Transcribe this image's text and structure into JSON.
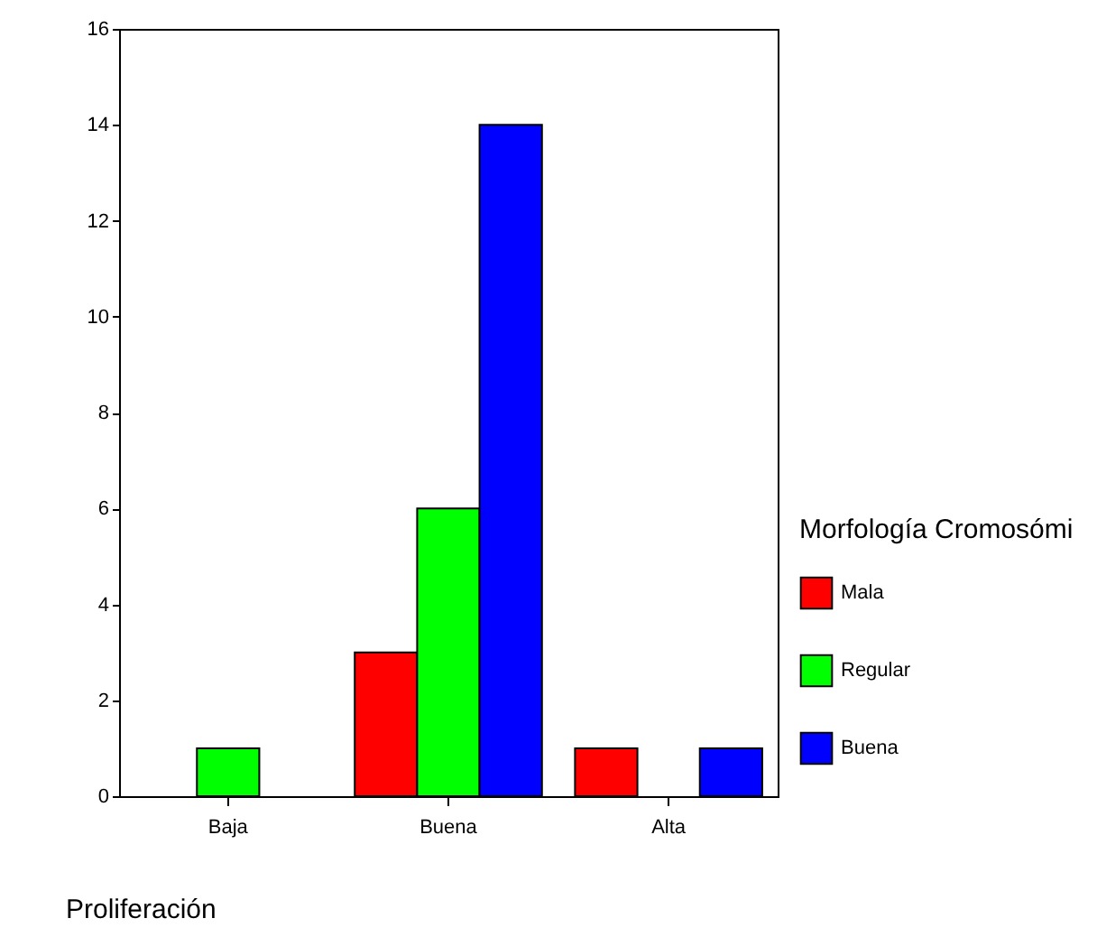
{
  "chart_data": {
    "type": "bar",
    "xlabel": "Proliferación",
    "legend_title": "Morfología Cromosómi",
    "categories": [
      "Baja",
      "Buena",
      "Alta"
    ],
    "series": [
      {
        "name": "Mala",
        "color": "#ff0000",
        "values": [
          null,
          3,
          1
        ]
      },
      {
        "name": "Regular",
        "color": "#00ff00",
        "values": [
          1,
          6,
          null
        ]
      },
      {
        "name": "Buena",
        "color": "#0000ff",
        "values": [
          null,
          14,
          1
        ]
      }
    ],
    "ylim": [
      0,
      16
    ],
    "yticks": [
      0,
      2,
      4,
      6,
      8,
      10,
      12,
      14,
      16
    ],
    "grid": false,
    "legend": "right"
  }
}
